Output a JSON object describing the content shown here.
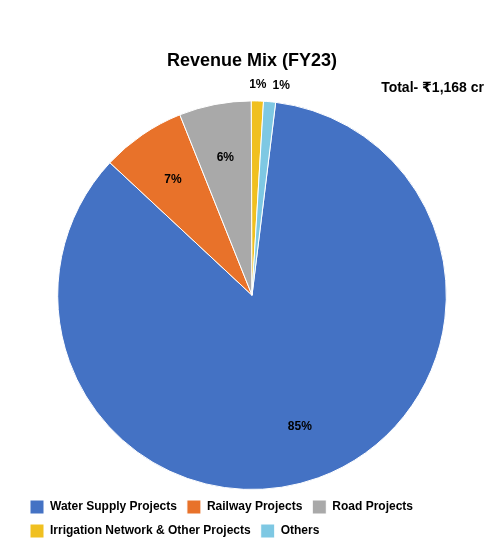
{
  "chart_data": {
    "type": "pie",
    "title": "Revenue Mix (FY23)",
    "annotation": "Total- ₹1,168 cr",
    "categories": [
      "Water Supply Projects",
      "Railway Projects",
      "Road Projects",
      "Irrigation Network & Other Projects",
      "Others"
    ],
    "values": [
      85,
      7,
      6,
      1,
      1
    ],
    "value_labels": [
      "85%",
      "7%",
      "6%",
      "1%",
      "1%"
    ],
    "colors": [
      "#4472C4",
      "#E8722A",
      "#A9A9A9",
      "#F0C020",
      "#7EC8E3"
    ],
    "data_labels": true,
    "legend": "bottom"
  }
}
